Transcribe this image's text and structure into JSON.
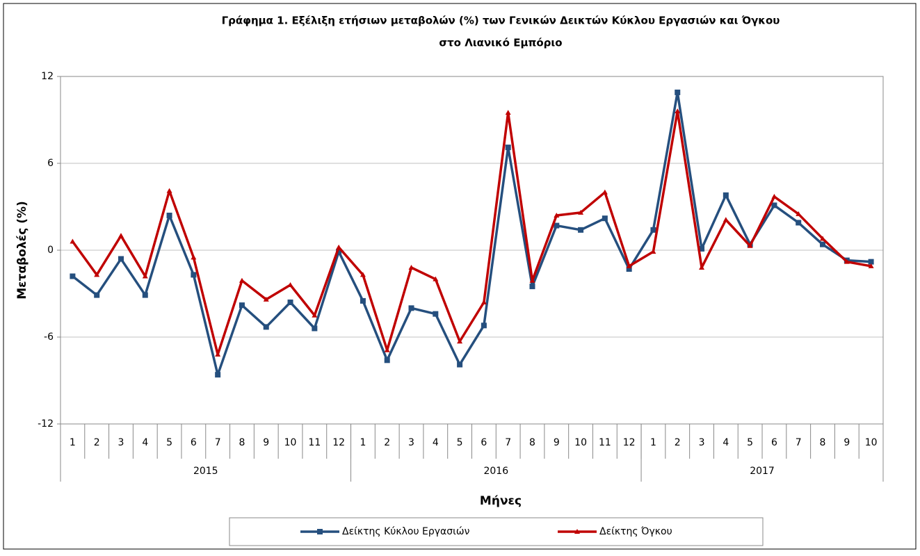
{
  "chart_data": {
    "type": "line",
    "title": [
      "Γράφημα 1. Εξέλιξη ετήσιων μεταβολών (%) των Γενικών Δεικτών Κύκλου Εργασιών και Όγκου",
      "στο Λιανικό Εμπόριο"
    ],
    "x_label": "Μήνες",
    "y_label": "Μεταβολές  (%)",
    "categories": [
      "1",
      "2",
      "3",
      "4",
      "5",
      "6",
      "7",
      "8",
      "9",
      "10",
      "11",
      "12",
      "1",
      "2",
      "3",
      "4",
      "5",
      "6",
      "7",
      "8",
      "9",
      "10",
      "11",
      "12",
      "1",
      "2",
      "3",
      "4",
      "5",
      "6",
      "7",
      "8",
      "9",
      "10"
    ],
    "category_groups": [
      {
        "name": "2015",
        "span": 12
      },
      {
        "name": "2016",
        "span": 12
      },
      {
        "name": "2017",
        "span": 10
      }
    ],
    "series": [
      {
        "name": "Δείκτης Κύκλου Εργασιών",
        "color": "#254f7e",
        "marker": "square",
        "values": [
          -1.8,
          -3.1,
          -0.6,
          -3.1,
          2.4,
          -1.7,
          -8.6,
          -3.8,
          -5.3,
          -3.6,
          -5.4,
          -0.1,
          -3.5,
          -7.6,
          -4.0,
          -4.4,
          -7.9,
          -5.2,
          7.1,
          -2.5,
          1.7,
          1.4,
          2.2,
          -1.3,
          1.4,
          10.9,
          0.1,
          3.8,
          0.4,
          3.1,
          1.9,
          0.4,
          -0.7,
          -0.8
        ]
      },
      {
        "name": "Δείκτης Όγκου",
        "color": "#c00000",
        "marker": "triangle",
        "values": [
          0.6,
          -1.7,
          1.0,
          -1.8,
          4.1,
          -0.5,
          -7.2,
          -2.1,
          -3.4,
          -2.4,
          -4.5,
          0.2,
          -1.7,
          -6.9,
          -1.2,
          -2.0,
          -6.3,
          -3.6,
          9.5,
          -2.1,
          2.4,
          2.6,
          4.0,
          -1.1,
          -0.1,
          9.6,
          -1.2,
          2.1,
          0.3,
          3.7,
          2.5,
          0.8,
          -0.8,
          -1.1
        ]
      }
    ],
    "ylim": [
      -12,
      12
    ],
    "yticks": [
      -12,
      -6,
      0,
      6,
      12
    ],
    "grid": true,
    "legend": "bottom"
  }
}
